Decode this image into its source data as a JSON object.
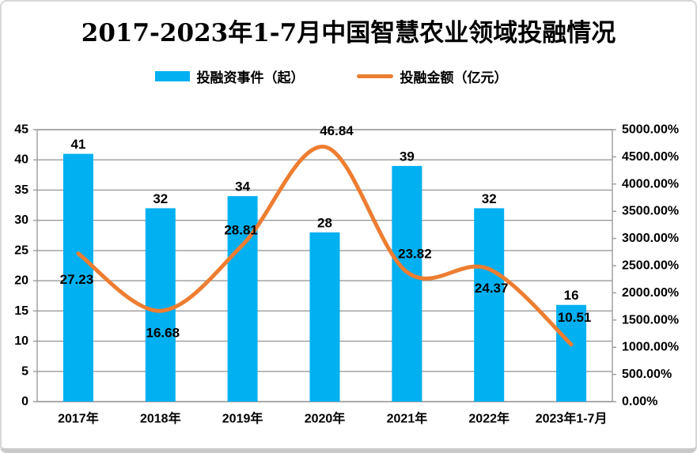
{
  "chart_data": {
    "type": "combo",
    "title": "2017-2023年1-7月中国智慧农业领域投融情况",
    "categories": [
      "2017年",
      "2018年",
      "2019年",
      "2020年",
      "2021年",
      "2022年",
      "2023年1-7月"
    ],
    "series": [
      {
        "name": "投融资事件（起）",
        "type": "bar",
        "axis": "left",
        "color": "#00B0F0",
        "values": [
          41,
          32,
          34,
          28,
          39,
          32,
          16
        ]
      },
      {
        "name": "投融金额（亿元）",
        "type": "line",
        "axis": "right",
        "color": "#ED7D31",
        "values": [
          27.23,
          16.68,
          28.81,
          46.84,
          23.82,
          24.37,
          10.51
        ],
        "value_scale_to_axis": 100
      }
    ],
    "left_axis": {
      "min": 0,
      "max": 45,
      "step": 5,
      "ticks": [
        "0",
        "5",
        "10",
        "15",
        "20",
        "25",
        "30",
        "35",
        "40",
        "45"
      ]
    },
    "right_axis": {
      "min": 0,
      "max": 5000,
      "step": 500,
      "ticks": [
        "0.00%",
        "500.00%",
        "1000.00%",
        "1500.00%",
        "2000.00%",
        "2500.00%",
        "3000.00%",
        "3500.00%",
        "4000.00%",
        "4500.00%",
        "5000.00%"
      ],
      "format": "percent"
    },
    "grid": true,
    "legend_position": "top"
  }
}
